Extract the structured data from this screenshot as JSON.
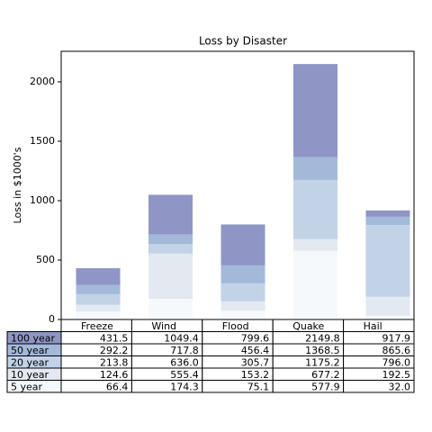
{
  "chart_data": {
    "type": "bar",
    "title": "Loss by Disaster",
    "ylabel": "Loss in $1000's",
    "categories": [
      "Freeze",
      "Wind",
      "Flood",
      "Quake",
      "Hail"
    ],
    "series": [
      {
        "name": "100 year",
        "color": "#8f96c6",
        "values": [
          431.5,
          1049.4,
          799.6,
          2149.8,
          917.9
        ],
        "value_labels": [
          "431.5",
          "1049.4",
          "799.6",
          "2149.8",
          "917.9"
        ]
      },
      {
        "name": "50 year",
        "color": "#a3b9da",
        "values": [
          292.2,
          717.8,
          456.4,
          1368.5,
          865.6
        ],
        "value_labels": [
          "292.2",
          "717.8",
          "456.4",
          "1368.5",
          "865.6"
        ]
      },
      {
        "name": "20 year",
        "color": "#c2d2e7",
        "values": [
          213.8,
          636.0,
          305.7,
          1175.2,
          796.0
        ],
        "value_labels": [
          "213.8",
          "636.0",
          "305.7",
          "1175.2",
          "796.0"
        ]
      },
      {
        "name": "10 year",
        "color": "#e2e9f1",
        "values": [
          124.6,
          555.4,
          153.2,
          677.2,
          192.5
        ],
        "value_labels": [
          "124.6",
          "555.4",
          "153.2",
          "677.2",
          "192.5"
        ]
      },
      {
        "name": "5 year",
        "color": "#f6f9fc",
        "values": [
          66.4,
          174.3,
          75.1,
          577.9,
          32.0
        ],
        "value_labels": [
          "66.4",
          "174.3",
          "75.1",
          "577.9",
          "32.0"
        ]
      }
    ],
    "ylim": [
      0,
      2257
    ],
    "yticks": [
      0,
      500,
      1000,
      1500,
      2000
    ]
  }
}
